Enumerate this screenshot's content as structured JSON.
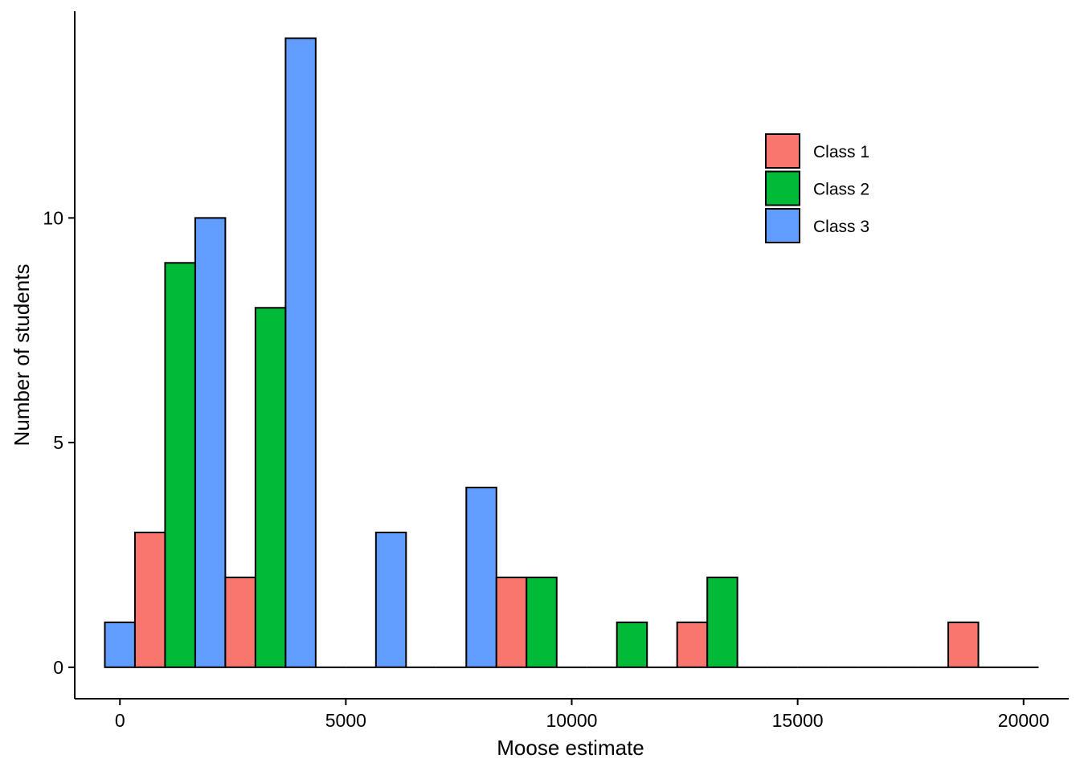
{
  "chart_data": {
    "type": "bar",
    "xlabel": "Moose estimate",
    "ylabel": "Number of students",
    "xlim": [
      -1000,
      21000
    ],
    "ylim": [
      -0.7,
      14.6
    ],
    "x_ticks": [
      0,
      5000,
      10000,
      15000,
      20000
    ],
    "y_ticks": [
      0,
      5,
      10
    ],
    "bin_width": 2000,
    "bin_start": 333,
    "grid": false,
    "legend_position": "top-right",
    "colors": {
      "Class 1": "#F8766D",
      "Class 2": "#00BA38",
      "Class 3": "#619CFF"
    },
    "series": [
      {
        "name": "Class 1",
        "values": [
          3,
          2,
          0,
          0,
          2,
          0,
          1,
          0,
          0,
          1
        ]
      },
      {
        "name": "Class 2",
        "values": [
          9,
          8,
          0,
          0,
          2,
          1,
          2,
          0,
          0,
          0
        ]
      },
      {
        "name": "Class 3",
        "values": [
          10,
          14,
          3,
          4,
          0,
          0,
          0,
          0,
          0,
          0
        ]
      }
    ],
    "lead_bar": {
      "series": "Class 3",
      "value": 1
    }
  }
}
